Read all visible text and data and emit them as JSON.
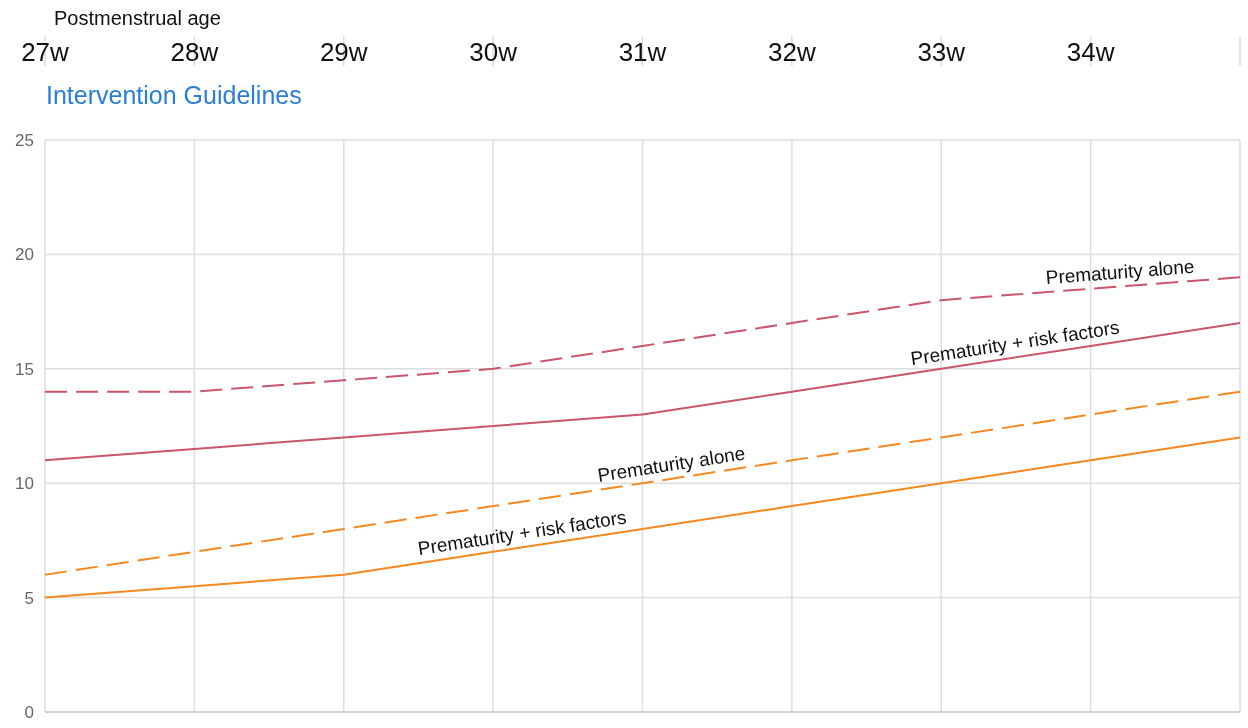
{
  "chart_data": {
    "type": "line",
    "title": "Intervention Guidelines",
    "xlabel": "Postmenstrual age",
    "x": [
      27,
      28,
      29,
      30,
      31,
      32,
      33,
      34,
      35
    ],
    "series": [
      {
        "name": "Prematurity alone",
        "color": "#c9566b",
        "line_style": "dashed",
        "values": [
          14,
          14,
          14.5,
          15,
          16,
          17,
          18,
          18.5,
          19
        ]
      },
      {
        "name": "Prematurity + risk factors",
        "color": "#c9566b",
        "line_style": "solid",
        "values": [
          11,
          11.5,
          12,
          12.5,
          13,
          14,
          15,
          16,
          17
        ]
      },
      {
        "name": "Prematurity alone",
        "color": "#f5891f",
        "line_style": "dashed",
        "values": [
          6,
          7,
          8,
          9,
          10,
          11,
          12,
          13,
          14
        ]
      },
      {
        "name": "Prematurity + risk factors",
        "color": "#f5891f",
        "line_style": "solid",
        "values": [
          5,
          5.5,
          6,
          7,
          8,
          9,
          10,
          11,
          12
        ]
      }
    ],
    "xlim": [
      27,
      35
    ],
    "xticks": [
      {
        "value": 27,
        "label": "27w"
      },
      {
        "value": 28,
        "label": "28w"
      },
      {
        "value": 29,
        "label": "29w"
      },
      {
        "value": 30,
        "label": "30w"
      },
      {
        "value": 31,
        "label": "31w"
      },
      {
        "value": 32,
        "label": "32w"
      },
      {
        "value": 33,
        "label": "33w"
      },
      {
        "value": 34,
        "label": "34w"
      },
      {
        "value": 35,
        "label": null
      }
    ],
    "ylim": [
      0,
      25
    ],
    "yticks": [
      0,
      5,
      10,
      15,
      20,
      25
    ],
    "grid": true,
    "marker": "none"
  }
}
